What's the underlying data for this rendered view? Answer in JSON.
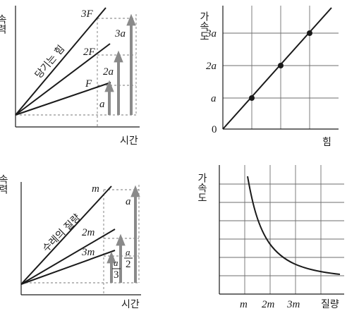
{
  "panels": {
    "top_left": {
      "y_axis_label": "속력",
      "x_axis_label": "시간",
      "line_caption": "당기는 힘",
      "line_labels": [
        "3F",
        "2F",
        "F"
      ],
      "arrow_labels": [
        "3a",
        "2a",
        "a"
      ]
    },
    "top_right": {
      "y_axis_label": "가속도",
      "x_axis_label": "힘",
      "y_tick_labels": [
        "3a",
        "2a",
        "a",
        "0"
      ]
    },
    "bottom_left": {
      "y_axis_label": "속력",
      "x_axis_label": "시간",
      "line_caption": "수레의 질량",
      "line_labels": [
        "m",
        "2m",
        "3m"
      ],
      "arrow_labels": {
        "large": "a",
        "half_num": "a",
        "half_den": "2",
        "third_num": "a",
        "third_den": "3"
      }
    },
    "bottom_right": {
      "y_axis_label": "가속도",
      "x_axis_label": "질량",
      "x_tick_labels": [
        "m",
        "2m",
        "3m"
      ]
    }
  },
  "colors": {
    "ink": "#1a1a1a",
    "arrow": "#8a8a8a",
    "grid": "#6e6e6e",
    "dashed": "#777777"
  },
  "chart_data": [
    {
      "type": "line",
      "title": "",
      "xlabel": "힘",
      "ylabel": "가속도",
      "x": [
        0,
        1,
        2,
        3
      ],
      "series": [
        {
          "values": [
            0,
            1,
            2,
            3
          ]
        }
      ],
      "marked_points": [
        [
          1,
          1
        ],
        [
          2,
          2
        ],
        [
          3,
          3
        ]
      ],
      "y_tick_labels": [
        "0",
        "a",
        "2a",
        "3a"
      ],
      "grid": true
    },
    {
      "type": "line",
      "title": "",
      "xlabel": "질량",
      "ylabel": "가속도",
      "x_tick_labels": [
        "m",
        "2m",
        "3m"
      ],
      "curve": "inverse (a ∝ 1/m)",
      "grid": true
    }
  ]
}
